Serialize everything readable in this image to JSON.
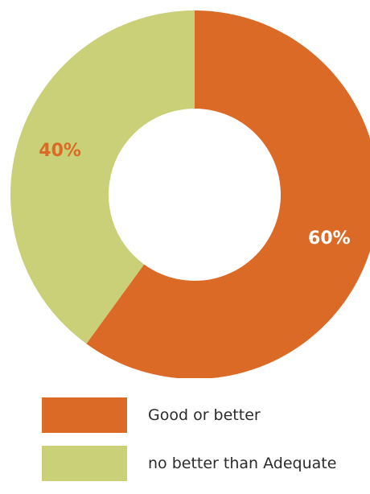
{
  "chart_data": {
    "type": "pie",
    "variant": "donut",
    "title": "",
    "slices": [
      {
        "label": "Good or better",
        "value": 60,
        "display": "60%",
        "color": "#DC6A27"
      },
      {
        "label": "no better than Adequate",
        "value": 40,
        "display": "40%",
        "color": "#C9D078"
      }
    ],
    "legend_position": "bottom-left",
    "label_color": "#ffffff"
  }
}
